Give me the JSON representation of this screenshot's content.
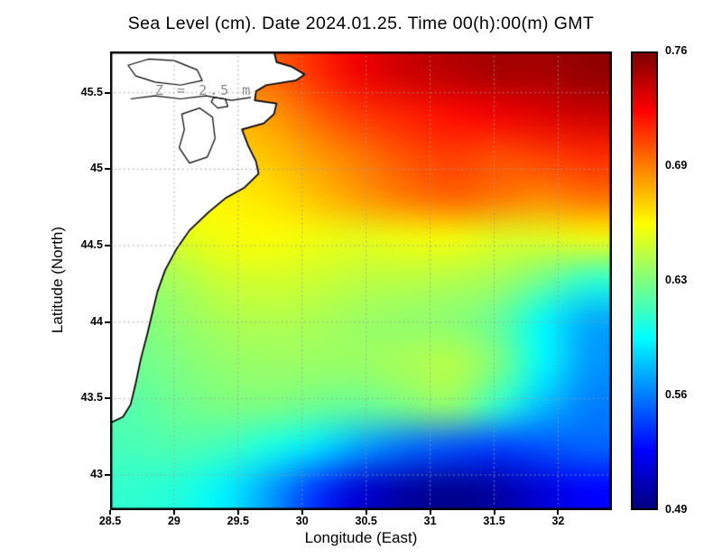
{
  "chart_data": {
    "type": "heatmap",
    "title": "Sea Level (cm). Date 2024.01.25. Time 00(h):00(m) GMT",
    "annotation": "Z = 2.5 m",
    "xlabel": "Longitude (East)",
    "ylabel": "Latitude (North)",
    "x_range": [
      28.5,
      32.42
    ],
    "y_range": [
      42.77,
      45.77
    ],
    "x_ticks": [
      28.5,
      29,
      29.5,
      30,
      30.5,
      31,
      31.5,
      32
    ],
    "x_tick_labels": [
      "28.5",
      "29",
      "29.5",
      "30",
      "30.5",
      "31",
      "31.5",
      "32"
    ],
    "y_ticks": [
      43,
      43.5,
      44,
      44.5,
      45,
      45.5
    ],
    "y_tick_labels": [
      "43",
      "43.5",
      "44",
      "44.5",
      "45",
      "45.5"
    ],
    "grid_on": true,
    "colorbar": {
      "min": 0.49,
      "max": 0.76,
      "tick_labels": [
        "0.76",
        "0.69",
        "0.63",
        "0.56",
        "0.49"
      ],
      "colormap": "jet",
      "position": "right"
    },
    "field": {
      "lon": [
        28.5,
        28.89,
        29.28,
        29.67,
        30.06,
        30.45,
        30.84,
        31.23,
        31.62,
        32.01,
        32.4
      ],
      "lat": [
        45.8,
        45.5,
        45.2,
        44.9,
        44.6,
        44.3,
        44.0,
        43.7,
        43.4,
        43.1,
        42.8
      ],
      "values": [
        [
          0.7,
          0.7,
          0.7,
          0.7,
          0.715,
          0.73,
          0.74,
          0.745,
          0.75,
          0.75,
          0.755
        ],
        [
          0.68,
          0.68,
          0.68,
          0.685,
          0.7,
          0.712,
          0.718,
          0.724,
          0.73,
          0.735,
          0.74
        ],
        [
          0.67,
          0.67,
          0.67,
          0.675,
          0.685,
          0.695,
          0.705,
          0.71,
          0.706,
          0.71,
          0.715
        ],
        [
          0.66,
          0.66,
          0.662,
          0.666,
          0.675,
          0.685,
          0.694,
          0.7,
          0.695,
          0.69,
          0.696
        ],
        [
          0.646,
          0.65,
          0.656,
          0.658,
          0.655,
          0.652,
          0.655,
          0.656,
          0.65,
          0.65,
          0.655
        ],
        [
          0.63,
          0.636,
          0.645,
          0.647,
          0.645,
          0.641,
          0.64,
          0.638,
          0.634,
          0.62,
          0.603
        ],
        [
          0.624,
          0.63,
          0.636,
          0.638,
          0.636,
          0.632,
          0.63,
          0.628,
          0.618,
          0.59,
          0.568
        ],
        [
          0.62,
          0.625,
          0.63,
          0.632,
          0.632,
          0.632,
          0.636,
          0.64,
          0.624,
          0.59,
          0.564
        ],
        [
          0.614,
          0.62,
          0.624,
          0.624,
          0.62,
          0.618,
          0.624,
          0.63,
          0.604,
          0.574,
          0.557
        ],
        [
          0.61,
          0.612,
          0.608,
          0.598,
          0.584,
          0.566,
          0.552,
          0.545,
          0.54,
          0.545,
          0.55
        ],
        [
          0.604,
          0.6,
          0.588,
          0.566,
          0.538,
          0.512,
          0.499,
          0.494,
          0.5,
          0.514,
          0.524
        ]
      ]
    },
    "coastline": {
      "land_polygon": [
        [
          28.5,
          45.77
        ],
        [
          29.78,
          45.77
        ],
        [
          29.8,
          45.7
        ],
        [
          29.92,
          45.67
        ],
        [
          30.02,
          45.62
        ],
        [
          29.95,
          45.58
        ],
        [
          29.72,
          45.55
        ],
        [
          29.64,
          45.51
        ],
        [
          29.63,
          45.45
        ],
        [
          29.8,
          45.43
        ],
        [
          29.78,
          45.36
        ],
        [
          29.7,
          45.3
        ],
        [
          29.53,
          45.26
        ],
        [
          29.58,
          45.15
        ],
        [
          29.64,
          45.05
        ],
        [
          29.66,
          44.97
        ],
        [
          29.55,
          44.88
        ],
        [
          29.4,
          44.81
        ],
        [
          29.27,
          44.72
        ],
        [
          29.12,
          44.6
        ],
        [
          29.02,
          44.48
        ],
        [
          28.93,
          44.34
        ],
        [
          28.87,
          44.2
        ],
        [
          28.83,
          44.06
        ],
        [
          28.79,
          43.92
        ],
        [
          28.74,
          43.76
        ],
        [
          28.7,
          43.6
        ],
        [
          28.66,
          43.46
        ],
        [
          28.6,
          43.38
        ],
        [
          28.5,
          43.34
        ]
      ],
      "lakes": [
        [
          [
            28.64,
            45.68
          ],
          [
            28.8,
            45.72
          ],
          [
            29.0,
            45.71
          ],
          [
            29.18,
            45.65
          ],
          [
            29.22,
            45.58
          ],
          [
            29.05,
            45.55
          ],
          [
            28.85,
            45.57
          ],
          [
            28.7,
            45.61
          ]
        ],
        [
          [
            29.06,
            45.36
          ],
          [
            29.2,
            45.4
          ],
          [
            29.3,
            45.34
          ],
          [
            29.32,
            45.2
          ],
          [
            29.26,
            45.08
          ],
          [
            29.12,
            45.04
          ],
          [
            29.04,
            45.14
          ],
          [
            29.08,
            45.26
          ]
        ],
        [
          [
            29.31,
            45.47
          ],
          [
            29.4,
            45.46
          ],
          [
            29.42,
            45.41
          ],
          [
            29.34,
            45.4
          ],
          [
            29.29,
            45.44
          ]
        ]
      ],
      "rivers": [
        [
          [
            28.66,
            45.46
          ],
          [
            28.85,
            45.48
          ],
          [
            29.05,
            45.46
          ],
          [
            29.25,
            45.48
          ],
          [
            29.45,
            45.45
          ],
          [
            29.6,
            45.47
          ]
        ]
      ]
    }
  }
}
